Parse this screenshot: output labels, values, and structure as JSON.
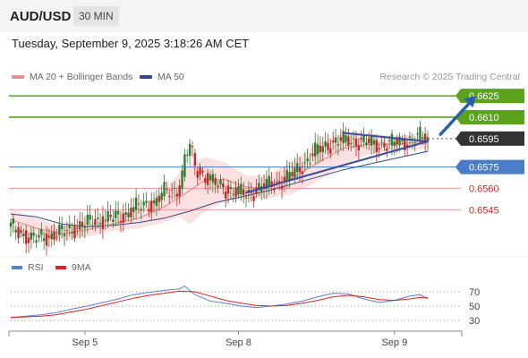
{
  "header": {
    "symbol": "AUD/USD",
    "timeframe": "30 MIN",
    "datetime": "Tuesday, September 9, 2025 3:18:26 AM CET"
  },
  "legend": {
    "ma20_label": "MA 20 + Bollinger Bands",
    "ma20_color": "#f28b8b",
    "ma50_label": "MA 50",
    "ma50_color": "#2d4a8a",
    "credit": "Research © 2025 Trading Central"
  },
  "rsi_legend": {
    "rsi_label": "RSI",
    "rsi_color": "#5b7fd6",
    "ma_label": "9MA",
    "ma_color": "#e02020"
  },
  "colors": {
    "bullish_candle": "#2e7d32",
    "bearish_candle": "#c62828",
    "resistance_green": "#5aa31a",
    "support_red": "#f2a0a0",
    "pivot_blue": "#4a7cc7",
    "trend_line": "#3b4fa0",
    "arrow": "#2a5fae",
    "bollinger_fill": "#f8c9c9"
  },
  "chart_data": [
    {
      "type": "candlestick",
      "title": "AUD/USD 30 MIN",
      "x_tick_labels": [
        "Sep 5",
        "Sep 8",
        "Sep 9"
      ],
      "y_range": [
        0.6515,
        0.6632
      ],
      "levels": [
        {
          "label": "0.6625",
          "value": 0.6625,
          "kind": "resistance"
        },
        {
          "label": "0.6610",
          "value": 0.661,
          "kind": "resistance"
        },
        {
          "label": "0.6595",
          "value": 0.6595,
          "kind": "last"
        },
        {
          "label": "0.6575",
          "value": 0.6575,
          "kind": "pivot"
        },
        {
          "label": "0.6560",
          "value": 0.656,
          "kind": "support"
        },
        {
          "label": "0.6545",
          "value": 0.6545,
          "kind": "support"
        }
      ],
      "close_path": [
        [
          0,
          0.6533
        ],
        [
          4,
          0.6529
        ],
        [
          8,
          0.6524
        ],
        [
          12,
          0.6526
        ],
        [
          16,
          0.6527
        ],
        [
          20,
          0.6529
        ],
        [
          24,
          0.6532
        ],
        [
          28,
          0.6534
        ],
        [
          32,
          0.6537
        ],
        [
          36,
          0.6538
        ],
        [
          40,
          0.6539
        ],
        [
          44,
          0.6541
        ],
        [
          48,
          0.6546
        ],
        [
          52,
          0.6548
        ],
        [
          56,
          0.655
        ],
        [
          60,
          0.6557
        ],
        [
          64,
          0.6559
        ],
        [
          66,
          0.656
        ],
        [
          68,
          0.658
        ],
        [
          70,
          0.659
        ],
        [
          72,
          0.6575
        ],
        [
          76,
          0.6568
        ],
        [
          80,
          0.6563
        ],
        [
          84,
          0.656
        ],
        [
          88,
          0.6557
        ],
        [
          92,
          0.6556
        ],
        [
          96,
          0.6559
        ],
        [
          100,
          0.6562
        ],
        [
          104,
          0.6564
        ],
        [
          108,
          0.6567
        ],
        [
          112,
          0.6573
        ],
        [
          116,
          0.658
        ],
        [
          120,
          0.6587
        ],
        [
          124,
          0.6591
        ],
        [
          128,
          0.6593
        ],
        [
          132,
          0.6594
        ],
        [
          136,
          0.6593
        ],
        [
          140,
          0.6592
        ],
        [
          144,
          0.6591
        ],
        [
          148,
          0.6591
        ],
        [
          152,
          0.6593
        ],
        [
          156,
          0.6594
        ],
        [
          160,
          0.6596
        ],
        [
          163,
          0.6595
        ]
      ],
      "ma20": [
        [
          0,
          0.6538
        ],
        [
          10,
          0.6532
        ],
        [
          20,
          0.6528
        ],
        [
          30,
          0.6531
        ],
        [
          40,
          0.6535
        ],
        [
          50,
          0.6539
        ],
        [
          60,
          0.6547
        ],
        [
          68,
          0.6556
        ],
        [
          76,
          0.6566
        ],
        [
          84,
          0.6566
        ],
        [
          92,
          0.6561
        ],
        [
          100,
          0.656
        ],
        [
          110,
          0.6567
        ],
        [
          120,
          0.6578
        ],
        [
          130,
          0.6588
        ],
        [
          140,
          0.6591
        ],
        [
          150,
          0.6591
        ],
        [
          163,
          0.6593
        ]
      ],
      "bollinger_upper": [
        [
          0,
          0.6545
        ],
        [
          10,
          0.6539
        ],
        [
          20,
          0.6533
        ],
        [
          30,
          0.6535
        ],
        [
          40,
          0.654
        ],
        [
          50,
          0.6546
        ],
        [
          60,
          0.6558
        ],
        [
          68,
          0.6575
        ],
        [
          76,
          0.6582
        ],
        [
          84,
          0.6578
        ],
        [
          92,
          0.6569
        ],
        [
          100,
          0.6569
        ],
        [
          110,
          0.6579
        ],
        [
          120,
          0.6592
        ],
        [
          130,
          0.6599
        ],
        [
          140,
          0.6598
        ],
        [
          150,
          0.6597
        ],
        [
          163,
          0.6598
        ]
      ],
      "bollinger_lower": [
        [
          0,
          0.653
        ],
        [
          10,
          0.6525
        ],
        [
          20,
          0.6523
        ],
        [
          30,
          0.6526
        ],
        [
          40,
          0.653
        ],
        [
          50,
          0.6532
        ],
        [
          60,
          0.6536
        ],
        [
          66,
          0.654
        ],
        [
          70,
          0.6535
        ],
        [
          76,
          0.6544
        ],
        [
          84,
          0.6551
        ],
        [
          92,
          0.6553
        ],
        [
          100,
          0.6553
        ],
        [
          110,
          0.6556
        ],
        [
          120,
          0.6565
        ],
        [
          130,
          0.6576
        ],
        [
          140,
          0.6584
        ],
        [
          150,
          0.6586
        ],
        [
          163,
          0.6588
        ]
      ],
      "ma50": [
        [
          0,
          0.6542
        ],
        [
          10,
          0.654
        ],
        [
          20,
          0.6535
        ],
        [
          30,
          0.6533
        ],
        [
          40,
          0.6534
        ],
        [
          50,
          0.6536
        ],
        [
          60,
          0.6539
        ],
        [
          70,
          0.6544
        ],
        [
          80,
          0.655
        ],
        [
          90,
          0.6554
        ],
        [
          100,
          0.6558
        ],
        [
          110,
          0.6563
        ],
        [
          120,
          0.6568
        ],
        [
          130,
          0.6573
        ],
        [
          140,
          0.6577
        ],
        [
          150,
          0.6581
        ],
        [
          163,
          0.6586
        ]
      ],
      "trendlines": [
        [
          [
            92,
            0.6557
          ],
          [
            163,
            0.6593
          ]
        ],
        [
          [
            130,
            0.6599
          ],
          [
            163,
            0.6593
          ]
        ]
      ],
      "arrow": [
        [
          168,
          0.6598
        ],
        [
          182,
          0.6625
        ]
      ]
    },
    {
      "type": "line",
      "title": "RSI",
      "y_tick_labels": [
        "70",
        "50",
        "30"
      ],
      "y_ticks": [
        70,
        50,
        30
      ],
      "y_range": [
        20,
        80
      ],
      "series": [
        {
          "name": "RSI",
          "values": [
            [
              0,
              34
            ],
            [
              6,
              36
            ],
            [
              12,
              38
            ],
            [
              18,
              41
            ],
            [
              24,
              46
            ],
            [
              30,
              50
            ],
            [
              36,
              55
            ],
            [
              42,
              60
            ],
            [
              48,
              66
            ],
            [
              54,
              69
            ],
            [
              60,
              72
            ],
            [
              66,
              74
            ],
            [
              68,
              78
            ],
            [
              72,
              66
            ],
            [
              78,
              57
            ],
            [
              84,
              54
            ],
            [
              90,
              50
            ],
            [
              96,
              48
            ],
            [
              102,
              50
            ],
            [
              108,
              53
            ],
            [
              114,
              57
            ],
            [
              120,
              63
            ],
            [
              126,
              68
            ],
            [
              132,
              67
            ],
            [
              138,
              60
            ],
            [
              144,
              55
            ],
            [
              150,
              58
            ],
            [
              156,
              64
            ],
            [
              160,
              66
            ],
            [
              163,
              60
            ]
          ]
        },
        {
          "name": "9MA",
          "values": [
            [
              0,
              34
            ],
            [
              6,
              35
            ],
            [
              12,
              36
            ],
            [
              18,
              38
            ],
            [
              24,
              42
            ],
            [
              30,
              46
            ],
            [
              36,
              51
            ],
            [
              42,
              56
            ],
            [
              48,
              61
            ],
            [
              54,
              65
            ],
            [
              60,
              68
            ],
            [
              66,
              71
            ],
            [
              72,
              70
            ],
            [
              78,
              64
            ],
            [
              84,
              58
            ],
            [
              90,
              54
            ],
            [
              96,
              51
            ],
            [
              102,
              50
            ],
            [
              108,
              51
            ],
            [
              114,
              54
            ],
            [
              120,
              58
            ],
            [
              126,
              63
            ],
            [
              132,
              65
            ],
            [
              138,
              63
            ],
            [
              144,
              59
            ],
            [
              150,
              58
            ],
            [
              156,
              60
            ],
            [
              160,
              62
            ],
            [
              163,
              62
            ]
          ]
        }
      ]
    }
  ]
}
